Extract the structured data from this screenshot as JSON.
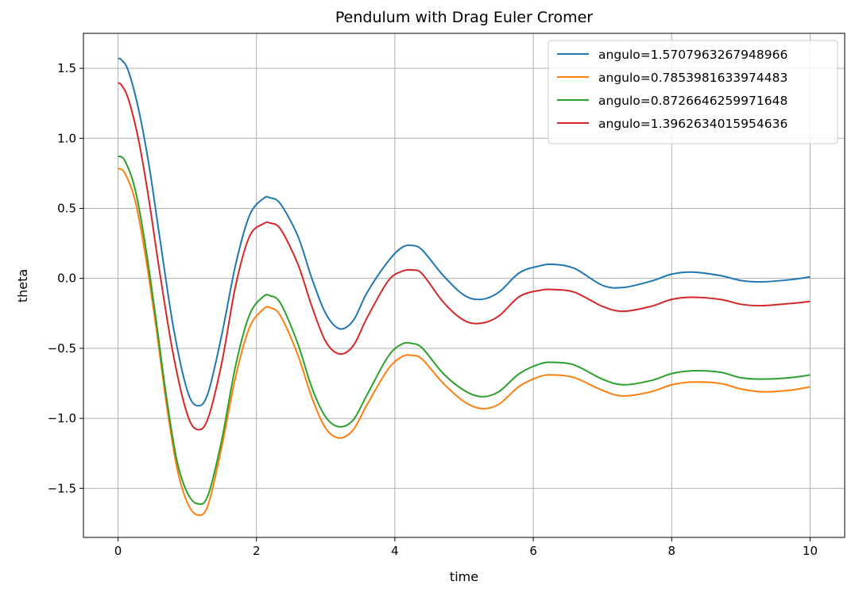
{
  "chart_data": {
    "type": "line",
    "title": "Pendulum with Drag Euler Cromer",
    "xlabel": "time",
    "ylabel": "theta",
    "xlim": [
      -0.5,
      10.5
    ],
    "ylim": [
      -1.85,
      1.75
    ],
    "xticks": [
      0,
      2,
      4,
      6,
      8,
      10
    ],
    "xtick_labels": [
      "0",
      "2",
      "4",
      "6",
      "8",
      "10"
    ],
    "yticks": [
      -1.5,
      -1.0,
      -0.5,
      0.0,
      0.5,
      1.0,
      1.5
    ],
    "ytick_labels": [
      "−1.5",
      "−1.0",
      "−0.5",
      "0.0",
      "0.5",
      "1.0",
      "1.5"
    ],
    "grid": true,
    "legend_position": "top-right",
    "series": [
      {
        "name": "angulo=1.5707963267948966",
        "color": "#1f77b4",
        "x": [
          0,
          0.05,
          0.15,
          0.3,
          0.45,
          0.6,
          0.8,
          1.0,
          1.15,
          1.3,
          1.5,
          1.7,
          1.9,
          2.1,
          2.2,
          2.35,
          2.6,
          2.8,
          3.0,
          3.2,
          3.4,
          3.6,
          3.9,
          4.1,
          4.25,
          4.4,
          4.7,
          5.0,
          5.25,
          5.5,
          5.8,
          6.1,
          6.3,
          6.6,
          7.0,
          7.3,
          7.7,
          8.0,
          8.3,
          8.7,
          9.0,
          9.3,
          9.7,
          10.0
        ],
        "y": [
          1.571,
          1.56,
          1.48,
          1.2,
          0.8,
          0.3,
          -0.35,
          -0.8,
          -0.91,
          -0.82,
          -0.4,
          0.1,
          0.45,
          0.57,
          0.575,
          0.53,
          0.3,
          0.0,
          -0.25,
          -0.36,
          -0.3,
          -0.1,
          0.12,
          0.22,
          0.235,
          0.2,
          0.02,
          -0.12,
          -0.15,
          -0.1,
          0.04,
          0.09,
          0.1,
          0.07,
          -0.05,
          -0.065,
          -0.02,
          0.03,
          0.045,
          0.02,
          -0.015,
          -0.025,
          -0.01,
          0.01
        ]
      },
      {
        "name": "angulo=0.7853981633974483",
        "color": "#ff7f0e",
        "x": [
          0,
          0.1,
          0.25,
          0.4,
          0.55,
          0.7,
          0.85,
          1.0,
          1.15,
          1.3,
          1.5,
          1.7,
          1.9,
          2.1,
          2.2,
          2.35,
          2.6,
          2.8,
          3.0,
          3.2,
          3.4,
          3.6,
          3.9,
          4.1,
          4.25,
          4.4,
          4.7,
          5.0,
          5.25,
          5.5,
          5.8,
          6.1,
          6.3,
          6.6,
          7.0,
          7.3,
          7.7,
          8.0,
          8.3,
          8.7,
          9.0,
          9.3,
          9.7,
          10.0
        ],
        "y": [
          0.785,
          0.75,
          0.55,
          0.15,
          -0.35,
          -0.9,
          -1.35,
          -1.6,
          -1.69,
          -1.62,
          -1.2,
          -0.7,
          -0.35,
          -0.22,
          -0.21,
          -0.27,
          -0.55,
          -0.85,
          -1.07,
          -1.14,
          -1.08,
          -0.9,
          -0.65,
          -0.56,
          -0.55,
          -0.58,
          -0.75,
          -0.88,
          -0.93,
          -0.9,
          -0.77,
          -0.7,
          -0.69,
          -0.71,
          -0.8,
          -0.84,
          -0.81,
          -0.76,
          -0.74,
          -0.75,
          -0.79,
          -0.81,
          -0.8,
          -0.775
        ]
      },
      {
        "name": "angulo=0.8726646259971648",
        "color": "#2ca02c",
        "x": [
          0,
          0.1,
          0.25,
          0.4,
          0.55,
          0.7,
          0.85,
          1.0,
          1.15,
          1.3,
          1.5,
          1.7,
          1.9,
          2.1,
          2.2,
          2.35,
          2.6,
          2.8,
          3.0,
          3.2,
          3.4,
          3.6,
          3.9,
          4.1,
          4.25,
          4.4,
          4.7,
          5.0,
          5.25,
          5.5,
          5.8,
          6.1,
          6.3,
          6.6,
          7.0,
          7.3,
          7.7,
          8.0,
          8.3,
          8.7,
          9.0,
          9.3,
          9.7,
          10.0
        ],
        "y": [
          0.873,
          0.84,
          0.63,
          0.22,
          -0.3,
          -0.85,
          -1.3,
          -1.53,
          -1.61,
          -1.55,
          -1.15,
          -0.62,
          -0.26,
          -0.13,
          -0.125,
          -0.18,
          -0.47,
          -0.78,
          -0.99,
          -1.06,
          -1.01,
          -0.83,
          -0.56,
          -0.47,
          -0.465,
          -0.5,
          -0.68,
          -0.8,
          -0.845,
          -0.81,
          -0.68,
          -0.61,
          -0.6,
          -0.62,
          -0.72,
          -0.76,
          -0.73,
          -0.68,
          -0.66,
          -0.67,
          -0.71,
          -0.72,
          -0.71,
          -0.69
        ]
      },
      {
        "name": "angulo=1.3962634015954636",
        "color": "#d62728",
        "x": [
          0,
          0.05,
          0.15,
          0.3,
          0.45,
          0.6,
          0.8,
          1.0,
          1.15,
          1.3,
          1.5,
          1.7,
          1.9,
          2.1,
          2.2,
          2.35,
          2.6,
          2.8,
          3.0,
          3.2,
          3.4,
          3.6,
          3.9,
          4.1,
          4.25,
          4.4,
          4.7,
          5.0,
          5.25,
          5.5,
          5.8,
          6.1,
          6.3,
          6.6,
          7.0,
          7.3,
          7.7,
          8.0,
          8.3,
          8.7,
          9.0,
          9.3,
          9.7,
          10.0
        ],
        "y": [
          1.396,
          1.38,
          1.28,
          0.98,
          0.55,
          0.05,
          -0.55,
          -0.97,
          -1.08,
          -1.0,
          -0.6,
          -0.05,
          0.3,
          0.39,
          0.395,
          0.35,
          0.1,
          -0.2,
          -0.45,
          -0.54,
          -0.48,
          -0.28,
          -0.02,
          0.05,
          0.06,
          0.03,
          -0.17,
          -0.3,
          -0.32,
          -0.27,
          -0.13,
          -0.085,
          -0.08,
          -0.1,
          -0.2,
          -0.235,
          -0.2,
          -0.15,
          -0.135,
          -0.15,
          -0.185,
          -0.195,
          -0.18,
          -0.165
        ]
      }
    ]
  }
}
